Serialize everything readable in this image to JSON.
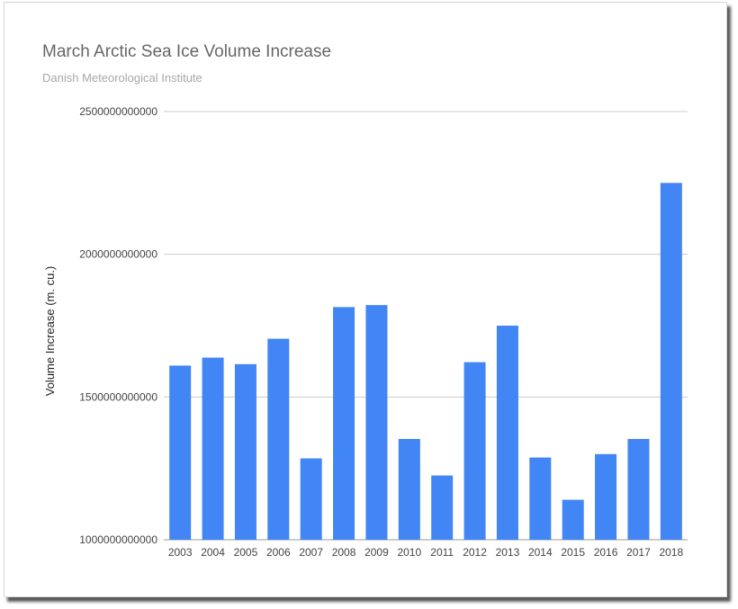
{
  "chart_data": {
    "type": "bar",
    "title": "March Arctic Sea Ice Volume Increase",
    "subtitle": "Danish Meteorological Institute",
    "xlabel": "",
    "ylabel": "Volume Increase (m. cu.)",
    "categories": [
      "2003",
      "2004",
      "2005",
      "2006",
      "2007",
      "2008",
      "2009",
      "2010",
      "2011",
      "2012",
      "2013",
      "2014",
      "2015",
      "2016",
      "2017",
      "2018"
    ],
    "values": [
      1610000000000,
      1638000000000,
      1615000000000,
      1704000000000,
      1285000000000,
      1815000000000,
      1822000000000,
      1353000000000,
      1225000000000,
      1622000000000,
      1750000000000,
      1288000000000,
      1140000000000,
      1300000000000,
      1353000000000,
      2250000000000
    ],
    "ylim": [
      1000000000000,
      2500000000000
    ],
    "yticks": [
      1000000000000,
      1500000000000,
      2000000000000,
      2500000000000
    ],
    "ytick_labels": [
      "1000000000000",
      "1500000000000",
      "2000000000000",
      "2500000000000"
    ],
    "grid": true,
    "legend": "none",
    "bar_color": "#4285f4"
  }
}
